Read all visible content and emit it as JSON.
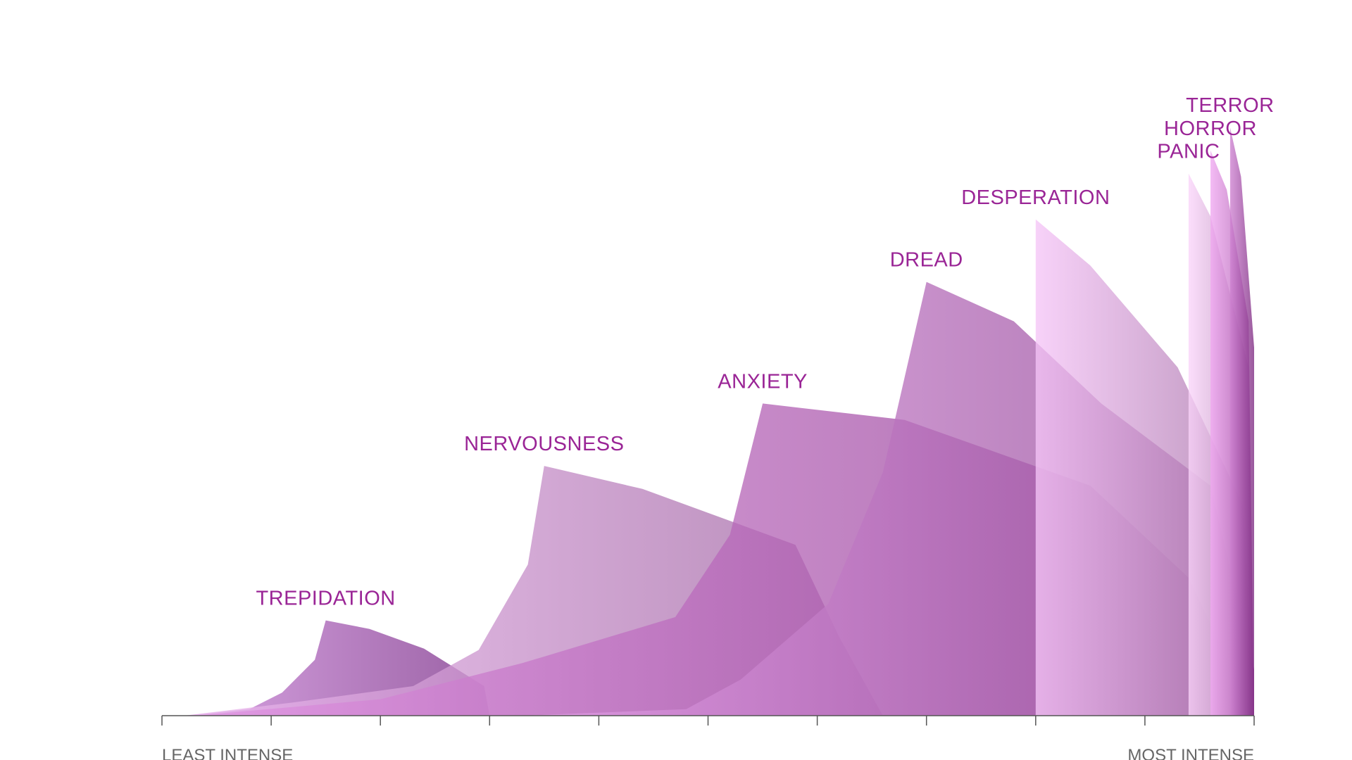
{
  "chart_data": {
    "type": "area",
    "x_labels": {
      "min": "LEAST INTENSE",
      "max": "MOST INTENSE"
    },
    "xlim": [
      0,
      10
    ],
    "ylim": [
      0,
      10
    ],
    "grid": false,
    "legend": "none",
    "series": [
      {
        "name": "TREPIDATION",
        "color": "#b44bc7",
        "points": [
          [
            0.2,
            0
          ],
          [
            0.8,
            0.1
          ],
          [
            1.1,
            0.35
          ],
          [
            1.4,
            0.85
          ],
          [
            1.5,
            1.45
          ],
          [
            1.9,
            1.32
          ],
          [
            2.4,
            1.02
          ],
          [
            2.95,
            0.45
          ],
          [
            3.0,
            0
          ]
        ]
      },
      {
        "name": "NERVOUSNESS",
        "color": "#e494e8",
        "points": [
          [
            0.2,
            0
          ],
          [
            1.2,
            0.2
          ],
          [
            2.3,
            0.45
          ],
          [
            2.9,
            1.0
          ],
          [
            3.35,
            2.3
          ],
          [
            3.5,
            3.8
          ],
          [
            4.4,
            3.45
          ],
          [
            5.8,
            2.6
          ],
          [
            6.2,
            1.2
          ],
          [
            6.6,
            0
          ]
        ]
      },
      {
        "name": "ANXIETY",
        "color": "#cf5bd2",
        "points": [
          [
            0.3,
            0
          ],
          [
            2.0,
            0.25
          ],
          [
            3.3,
            0.8
          ],
          [
            4.7,
            1.5
          ],
          [
            5.2,
            2.75
          ],
          [
            5.5,
            4.75
          ],
          [
            6.8,
            4.5
          ],
          [
            7.7,
            3.97
          ],
          [
            8.5,
            3.5
          ],
          [
            9.4,
            2.1
          ],
          [
            10.0,
            0
          ]
        ]
      },
      {
        "name": "DREAD",
        "color": "#d269d8",
        "points": [
          [
            3.3,
            0
          ],
          [
            4.8,
            0.1
          ],
          [
            5.3,
            0.55
          ],
          [
            6.1,
            1.7
          ],
          [
            6.6,
            3.7
          ],
          [
            7.0,
            6.6
          ],
          [
            7.8,
            6.0
          ],
          [
            8.6,
            4.75
          ],
          [
            9.6,
            3.5
          ],
          [
            10.0,
            0.7
          ],
          [
            10.0,
            0
          ]
        ]
      },
      {
        "name": "DESPERATION",
        "color": "#f0a6f2",
        "points": [
          [
            8.0,
            0
          ],
          [
            8.0,
            7.55
          ],
          [
            8.5,
            6.85
          ],
          [
            9.3,
            5.3
          ],
          [
            9.9,
            3.2
          ],
          [
            10.0,
            0
          ]
        ]
      },
      {
        "name": "PANIC",
        "color": "#f7bdf7",
        "points": [
          [
            9.4,
            0
          ],
          [
            9.4,
            8.25
          ],
          [
            9.6,
            7.6
          ],
          [
            9.95,
            5.3
          ],
          [
            10.0,
            0
          ]
        ]
      },
      {
        "name": "HORROR",
        "color": "#e877ea",
        "points": [
          [
            9.6,
            0
          ],
          [
            9.6,
            8.6
          ],
          [
            9.75,
            8.0
          ],
          [
            9.95,
            6.0
          ],
          [
            10.0,
            0
          ]
        ]
      },
      {
        "name": "TERROR",
        "color": "#b33cb8",
        "points": [
          [
            9.78,
            0
          ],
          [
            9.78,
            8.95
          ],
          [
            9.88,
            8.2
          ],
          [
            10.0,
            5.6
          ],
          [
            10.0,
            0
          ]
        ]
      }
    ]
  }
}
